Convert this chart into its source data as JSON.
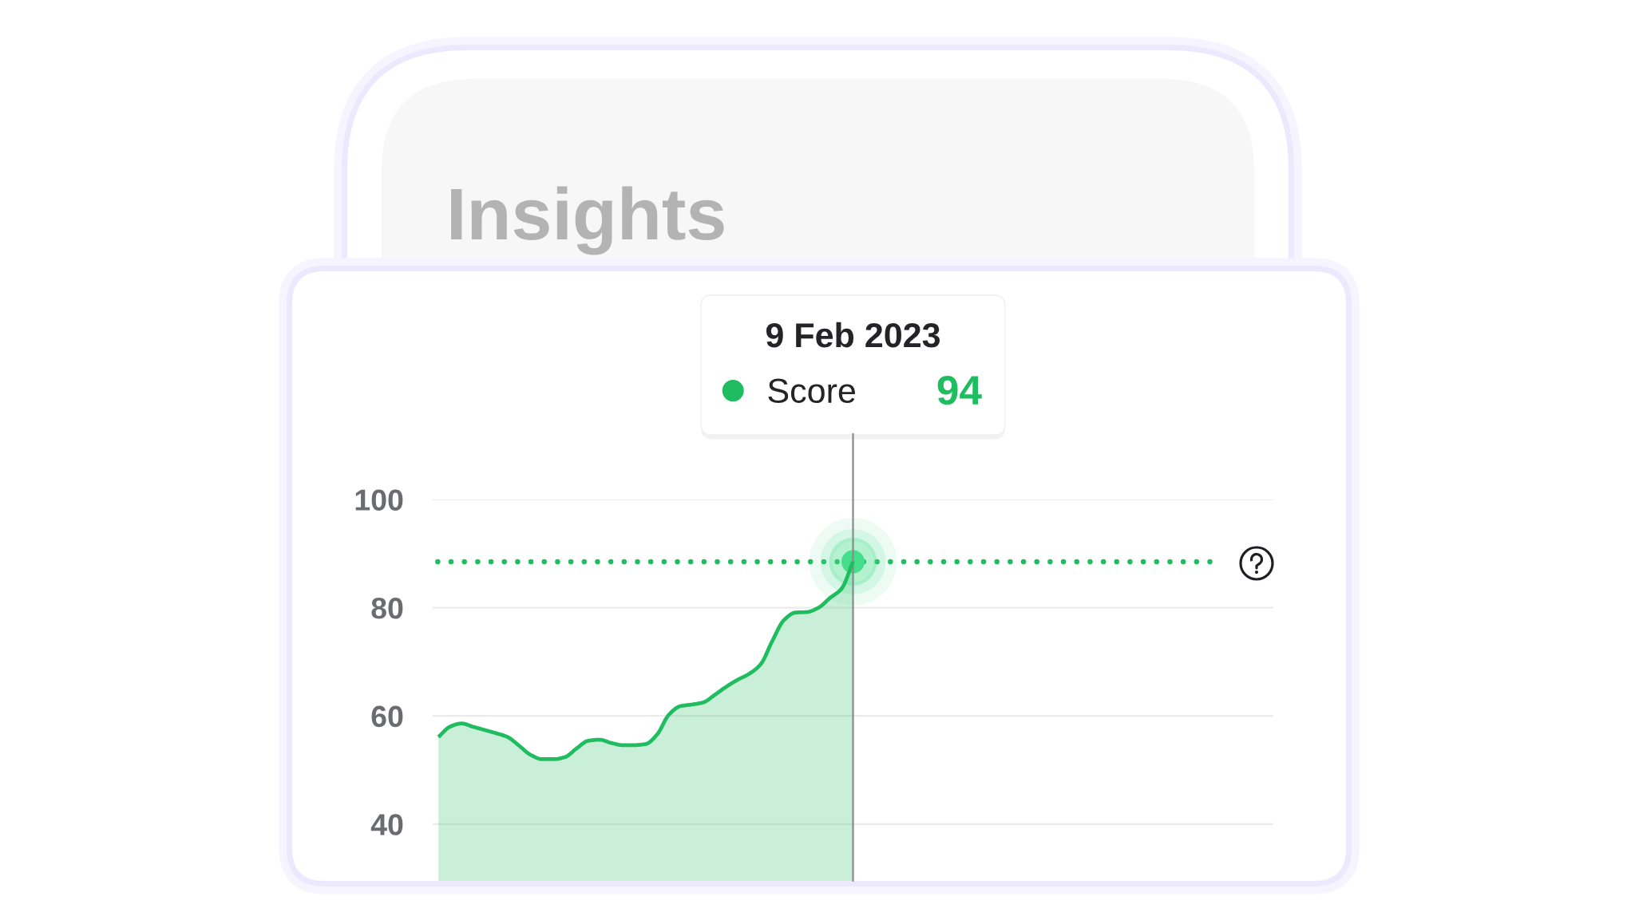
{
  "chart_data": {
    "type": "area",
    "title": "Insights",
    "categories": [
      null,
      null,
      null,
      null,
      null,
      null,
      null,
      null,
      null,
      null,
      null,
      null,
      null,
      null,
      null,
      null,
      null,
      null,
      null,
      null,
      null,
      null,
      null,
      null,
      null,
      null,
      null,
      null,
      null,
      null,
      null,
      null,
      null,
      null,
      null,
      null,
      null,
      null,
      null,
      null,
      null,
      null,
      null,
      null,
      null,
      null,
      null,
      null,
      null,
      null,
      null,
      null,
      null,
      null,
      null,
      null,
      null,
      null,
      null,
      null,
      null,
      null,
      null,
      null,
      null,
      null,
      null,
      null,
      null,
      null,
      null,
      null,
      null
    ],
    "series": [
      {
        "name": "Score",
        "color": "#1fbd60",
        "values": [
          56.1,
          58.0,
          58.6,
          58.0,
          57.4,
          56.8,
          56.1,
          54.5,
          52.8,
          52.0,
          52.0,
          52.4,
          54.0,
          55.4,
          55.6,
          55.0,
          54.6,
          54.6,
          54.8,
          56.6,
          60.2,
          61.8,
          62.1,
          62.5,
          63.9,
          65.4,
          66.7,
          67.8,
          69.6,
          73.9,
          77.7,
          79.1,
          79.2,
          80.0,
          81.8,
          83.5,
          88.5,
          null,
          null,
          null,
          null,
          null,
          null,
          null,
          null,
          null,
          null,
          null,
          null,
          null,
          null,
          null,
          null,
          null,
          null,
          null,
          null,
          null,
          null,
          null,
          null,
          null,
          null,
          null,
          null,
          null,
          null,
          null,
          null,
          null,
          null,
          null,
          null
        ]
      },
      {
        "type": "scatter",
        "color": "#45de8a",
        "marker": "circle",
        "values": [
          null,
          null,
          null,
          null,
          null,
          null,
          null,
          null,
          null,
          null,
          null,
          null,
          null,
          null,
          null,
          null,
          null,
          null,
          null,
          null,
          null,
          null,
          null,
          null,
          null,
          null,
          null,
          null,
          null,
          null,
          null,
          null,
          null,
          null,
          null,
          null,
          88.5,
          null,
          null,
          null,
          null,
          null,
          null,
          null,
          null,
          null,
          null,
          null,
          null,
          null,
          null,
          null,
          null,
          null,
          null,
          null,
          null,
          null,
          null,
          null,
          null,
          null,
          null,
          null,
          null,
          null,
          null,
          null,
          null,
          null,
          null,
          null,
          null
        ]
      }
    ],
    "ylim": [
      29.5,
      100
    ],
    "yticks": [
      40,
      60,
      80,
      100
    ],
    "grid": "y",
    "tick_labels": "y",
    "legend": "top",
    "ref_lines": [
      {
        "axis": "y",
        "value": 88.5,
        "color": "#1fbd60",
        "line_style": "dotted"
      }
    ],
    "annotations": [
      "9 Feb 2023",
      "94"
    ]
  }
}
